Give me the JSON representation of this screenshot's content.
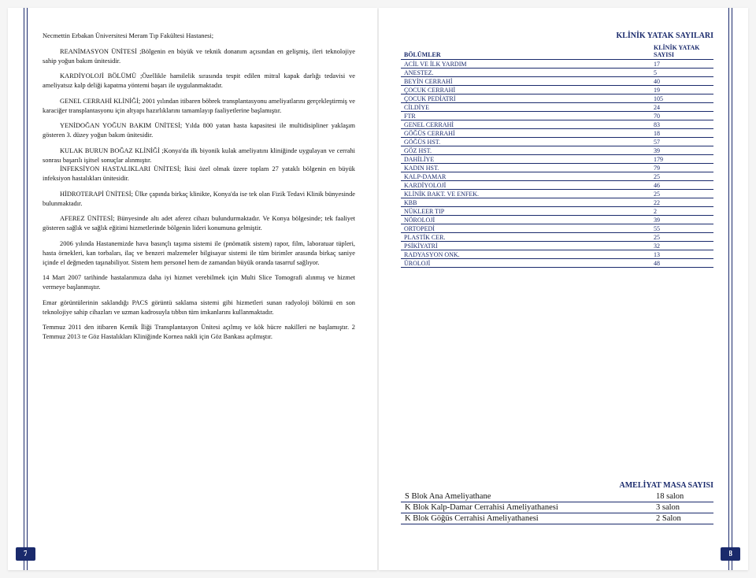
{
  "colors": {
    "primary": "#1a2a6c",
    "background": "#ffffff",
    "text": "#111111"
  },
  "leftPage": {
    "pageNumber": "7",
    "title": "Necmettin Erbakan Üniversitesi Meram Tıp Fakültesi Hastanesi;",
    "paragraphs": [
      "REANİMASYON ÜNİTESİ ;Bölgenin en büyük ve teknik donanım açısından en gelişmiş, ileri teknolojiye sahip yoğun bakım ünitesidir.",
      "KARDİYOLOJİ BÖLÜMÜ ;Özellikle hamilelik sırasında tespit edilen mitral kapak darlığı tedavisi ve ameliyatsız kalp deliği kapatma yöntemi başarı ile uygulanmaktadır.",
      "GENEL CERRAHİ KLİNİĞİ; 2001 yılından itibaren böbrek transplantasyonu ameliyatlarını gerçekleştirmiş ve karaciğer transplantasyonu için altyapı hazırlıklarını tamamlayıp faaliyetlerine başlamıştır.",
      "YENİDOĞAN YOĞUN BAKIM ÜNİTESİ; Yılda 800 yatan hasta kapasitesi ile multidisipliner yaklaşım gösteren 3. düzey yoğun bakım ünitesidir.",
      "KULAK BURUN BOĞAZ KLİNİĞİ ;Konya'da ilk biyonik kulak ameliyatını kliniğinde uygulayan ve cerrahi sonrası başarılı işitsel sonuçlar alınmıştır.",
      "İNFEKSİYON HASTALIKLARI ÜNİTESİ; İkisi özel olmak üzere toplam 27 yataklı bölgenin en büyük infeksiyon hastalıkları ünitesidir.",
      "HİDROTERAPİ ÜNİTESİ; Ülke çapında birkaç klinikte, Konya'da ise tek olan Fizik Tedavi Klinik bünyesinde bulunmaktadır.",
      "AFEREZ ÜNİTESİ; Bünyesinde altı adet aferez cihazı bulundurmaktadır. Ve Konya bölgesinde; tek faaliyet gösteren  sağlık ve sağlık eğitimi hizmetlerinde bölgenin lideri konumuna gelmiştir.",
      "2006 yılında Hastanemizde hava basınçlı taşıma sistemi ile (pnömatik sistem) rapor, film, laboratuar tüpleri, hasta örnekleri, kan torbaları, ilaç ve benzeri malzemeler bilgisayar sistemi ile tüm birimler arasında birkaç saniye içinde el değmeden taşınabiliyor. Sistem hem personel hem de zamandan büyük oranda tasarruf sağlıyor.",
      "14 Mart 2007 tarihinde hastalarımıza daha iyi hizmet verebilmek için Multi Slice Tomografi alınmış ve hizmet vermeye başlanmıştır.",
      "Emar görüntülerinin saklandığı PACS görüntü saklama sistemi gibi hizmetleri sunan radyoloji bölümü en son teknolojiye sahip cihazları ve uzman kadrosuyla tıbbın tüm imkanlarını kullanmaktadır.",
      "Temmuz 2011 den itibaren Kemik İliği Transplantasyon Ünitesi açılmış ve kök hücre nakilleri ne başlamıştır. 2 Temmuz 2013 te Göz Hastalıkları Kliniğinde Kornea nakli için Göz Bankası açılmıştır."
    ]
  },
  "rightPage": {
    "pageNumber": "8",
    "yatakTitle": "KLİNİK YATAK SAYILARI",
    "yatakHeaders": {
      "col1": "BÖLÜMLER",
      "col2": "KLİNİK YATAK SAYISI"
    },
    "yatakRows": [
      {
        "name": "ACİL VE İLK YARDIM",
        "count": "17"
      },
      {
        "name": "ANESTEZ.",
        "count": "5"
      },
      {
        "name": "BEYİN CERRAHİ",
        "count": "40"
      },
      {
        "name": "ÇOCUK CERRAHİ",
        "count": "19"
      },
      {
        "name": "ÇOCUK PEDİATRİ",
        "count": "105"
      },
      {
        "name": "CİLDİYE",
        "count": "24"
      },
      {
        "name": "FTR",
        "count": "70"
      },
      {
        "name": "GENEL CERRAHİ",
        "count": "83"
      },
      {
        "name": "GÖĞÜS CERRAHİ",
        "count": "18"
      },
      {
        "name": "GÖĞÜS HST.",
        "count": "57"
      },
      {
        "name": "GÖZ HST.",
        "count": "39"
      },
      {
        "name": "DAHİLİYE",
        "count": "179"
      },
      {
        "name": "KADIN HST.",
        "count": "79"
      },
      {
        "name": "KALP-DAMAR",
        "count": "25"
      },
      {
        "name": "KARDİYOLOJİ",
        "count": "46"
      },
      {
        "name": "KLİNİK BAKT. VE ENFEK.",
        "count": "25"
      },
      {
        "name": "KBB",
        "count": "22"
      },
      {
        "name": "NÜKLEER TIP",
        "count": "2"
      },
      {
        "name": "NÖROLOJİ",
        "count": "39"
      },
      {
        "name": "ORTOPEDİ",
        "count": "55"
      },
      {
        "name": "PLASTİK CER.",
        "count": "25"
      },
      {
        "name": "PSİKİYATRİ",
        "count": "32"
      },
      {
        "name": "RADYASYON ONK.",
        "count": "13"
      },
      {
        "name": "ÜROLOJİ",
        "count": "48"
      }
    ],
    "ameliyatTitle": "AMELİYAT MASA SAYISI",
    "ameliyatRows": [
      {
        "name": "S Blok Ana Ameliyathane",
        "count": "18 salon"
      },
      {
        "name": "K Blok Kalp-Damar Cerrahisi Ameliyathanesi",
        "count": "3 salon"
      },
      {
        "name": "K Blok Göğüs Cerrahisi Ameliyathanesi",
        "count": "2 Salon"
      }
    ]
  }
}
